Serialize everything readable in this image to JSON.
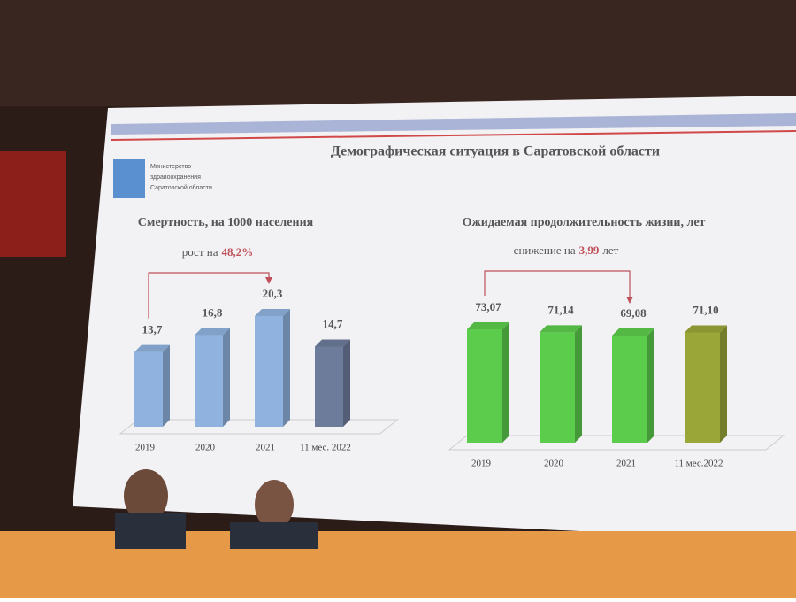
{
  "slide_title": "Демографическая ситуация в Саратовской области",
  "logo_text": [
    "Министерство",
    "здравоохранения",
    "Саратовской области"
  ],
  "chart_data": [
    {
      "type": "bar",
      "title": "Смертность, на 1000 населения",
      "annotation": {
        "prefix": "рост на",
        "value": "48,2%"
      },
      "categories": [
        "2019",
        "2020",
        "2021",
        "11 мес. 2022"
      ],
      "values": [
        13.7,
        16.8,
        20.3,
        14.7
      ],
      "value_labels": [
        "13,7",
        "16,8",
        "20,3",
        "14,7"
      ],
      "colors": [
        "#8fb3de",
        "#8fb3de",
        "#8fb3de",
        "#6e7c9c"
      ]
    },
    {
      "type": "bar",
      "title": "Ожидаемая продолжительность жизни,  лет",
      "annotation": {
        "prefix": "снижение на",
        "value": "3,99",
        "suffix": "лет"
      },
      "categories": [
        "2019",
        "2020",
        "2021",
        "11 мес.2022"
      ],
      "values": [
        73.07,
        71.14,
        69.08,
        71.1
      ],
      "value_labels": [
        "73,07",
        "71,14",
        "69,08",
        "71,10"
      ],
      "colors": [
        "#5ccc4c",
        "#5ccc4c",
        "#5ccc4c",
        "#9aa638"
      ]
    }
  ]
}
